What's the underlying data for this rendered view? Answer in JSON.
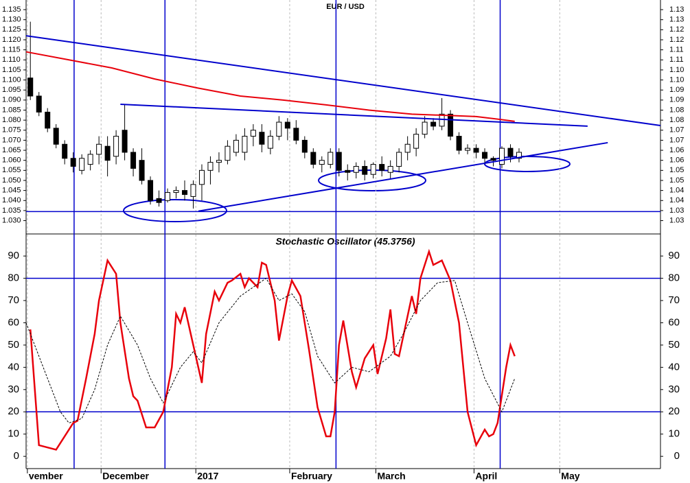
{
  "chart_data": [
    {
      "type": "candlestick",
      "title": "EUR / USD",
      "xlim": [
        0,
        148
      ],
      "ylim": [
        1.0237,
        1.1398
      ],
      "x": [
        1,
        3,
        5,
        7,
        9,
        11,
        13,
        15,
        17,
        19,
        21,
        23,
        25,
        27,
        29,
        31,
        33,
        35,
        37,
        39,
        41,
        43,
        45,
        47,
        49,
        51,
        53,
        55,
        57,
        59,
        61,
        63,
        65,
        67,
        69,
        71,
        73,
        75,
        77,
        79,
        81,
        83,
        85,
        87,
        89,
        91,
        93,
        95,
        97,
        99,
        101,
        103,
        105,
        107,
        109,
        111,
        113,
        115
      ],
      "open": [
        1.101,
        1.092,
        1.084,
        1.076,
        1.068,
        1.061,
        1.055,
        1.058,
        1.063,
        1.067,
        1.062,
        1.075,
        1.064,
        1.06,
        1.05,
        1.041,
        1.04,
        1.044,
        1.045,
        1.042,
        1.048,
        1.055,
        1.059,
        1.06,
        1.064,
        1.064,
        1.072,
        1.074,
        1.066,
        1.072,
        1.079,
        1.076,
        1.07,
        1.064,
        1.058,
        1.058,
        1.064,
        1.055,
        1.054,
        1.057,
        1.053,
        1.058,
        1.054,
        1.057,
        1.064,
        1.066,
        1.073,
        1.079,
        1.077,
        1.083,
        1.072,
        1.065,
        1.066,
        1.064,
        1.061,
        1.058,
        1.066,
        1.061
      ],
      "high": [
        1.129,
        1.094,
        1.086,
        1.078,
        1.07,
        1.064,
        1.063,
        1.065,
        1.072,
        1.072,
        1.075,
        1.088,
        1.066,
        1.066,
        1.052,
        1.045,
        1.046,
        1.047,
        1.05,
        1.05,
        1.058,
        1.062,
        1.064,
        1.07,
        1.073,
        1.076,
        1.078,
        1.078,
        1.075,
        1.082,
        1.081,
        1.08,
        1.072,
        1.066,
        1.062,
        1.066,
        1.066,
        1.058,
        1.059,
        1.06,
        1.059,
        1.062,
        1.06,
        1.066,
        1.072,
        1.076,
        1.082,
        1.081,
        1.091,
        1.085,
        1.074,
        1.068,
        1.068,
        1.066,
        1.062,
        1.067,
        1.068,
        1.066
      ],
      "low": [
        1.09,
        1.082,
        1.074,
        1.066,
        1.058,
        1.054,
        1.053,
        1.055,
        1.058,
        1.052,
        1.058,
        1.06,
        1.052,
        1.048,
        1.038,
        1.037,
        1.039,
        1.041,
        1.04,
        1.036,
        1.04,
        1.048,
        1.054,
        1.058,
        1.062,
        1.06,
        1.067,
        1.064,
        1.063,
        1.07,
        1.07,
        1.068,
        1.061,
        1.056,
        1.054,
        1.056,
        1.052,
        1.05,
        1.051,
        1.05,
        1.051,
        1.052,
        1.051,
        1.054,
        1.06,
        1.062,
        1.071,
        1.075,
        1.075,
        1.07,
        1.063,
        1.063,
        1.061,
        1.058,
        1.057,
        1.056,
        1.059,
        1.059
      ],
      "close": [
        1.092,
        1.084,
        1.076,
        1.068,
        1.061,
        1.057,
        1.061,
        1.063,
        1.068,
        1.06,
        1.072,
        1.064,
        1.056,
        1.05,
        1.04,
        1.039,
        1.044,
        1.045,
        1.043,
        1.048,
        1.055,
        1.059,
        1.06,
        1.067,
        1.07,
        1.072,
        1.075,
        1.068,
        1.072,
        1.079,
        1.076,
        1.07,
        1.064,
        1.058,
        1.06,
        1.064,
        1.055,
        1.054,
        1.057,
        1.053,
        1.058,
        1.055,
        1.057,
        1.064,
        1.068,
        1.073,
        1.079,
        1.077,
        1.083,
        1.072,
        1.065,
        1.066,
        1.064,
        1.061,
        1.06,
        1.066,
        1.062,
        1.064
      ],
      "up_color": "#ffffff",
      "down_color": "#000000",
      "series": [
        {
          "color": "#e8000b",
          "x": [
            0,
            10,
            20,
            30,
            40,
            50,
            60,
            70,
            80,
            90,
            100,
            105,
            110,
            114
          ],
          "values": [
            1.114,
            1.11,
            1.106,
            1.1005,
            1.096,
            1.092,
            1.09,
            1.0876,
            1.085,
            1.083,
            1.0822,
            1.0818,
            1.0805,
            1.0794
          ]
        }
      ],
      "trendlines": [
        {
          "x": [
            0,
            148
          ],
          "values": [
            1.122,
            1.0773
          ]
        },
        {
          "x": [
            22,
            131
          ],
          "values": [
            1.0879,
            1.077
          ]
        },
        {
          "x": [
            40.2,
            135.7
          ],
          "values": [
            1.0347,
            1.0688
          ]
        }
      ],
      "line_color": "#0000cc",
      "hlines": [
        1.0345
      ],
      "vlines": [
        11.2,
        32.4,
        72.3,
        110.6
      ],
      "yticks": [
        1.135,
        {
          "value": 1.13,
          "label": "1.130"
        },
        1.125,
        {
          "value": 1.12,
          "label": "1.120"
        },
        1.115,
        {
          "value": 1.11,
          "label": "1.110"
        },
        1.105,
        {
          "value": 1.1,
          "label": "1.100"
        },
        1.095,
        {
          "value": 1.09,
          "label": "1.090"
        },
        1.085,
        {
          "value": 1.08,
          "label": "1.080"
        },
        1.075,
        {
          "value": 1.07,
          "label": "1.070"
        },
        1.065,
        {
          "value": 1.06,
          "label": "1.060"
        },
        1.055,
        {
          "value": 1.05,
          "label": "1.050"
        },
        1.045,
        {
          "value": 1.04,
          "label": "1.040"
        },
        1.035,
        {
          "value": 1.03,
          "label": "1.030"
        }
      ],
      "y2ticks": [
        {
          "value": 1.135,
          "label": "1.13"
        },
        1.13,
        {
          "value": 1.125,
          "label": "1.12"
        },
        1.12,
        {
          "value": 1.115,
          "label": "1.11"
        },
        1.11,
        {
          "value": 1.105,
          "label": "1.10"
        },
        {
          "value": 1.1,
          "label": "1.10"
        },
        {
          "value": 1.095,
          "label": "1.09"
        },
        1.09,
        {
          "value": 1.085,
          "label": "1.08"
        },
        1.08,
        {
          "value": 1.075,
          "label": "1.07"
        },
        1.07,
        {
          "value": 1.065,
          "label": "1.06"
        },
        1.06,
        {
          "value": 1.055,
          "label": "1.05"
        },
        1.05,
        {
          "value": 1.045,
          "label": "1.04"
        },
        1.04,
        {
          "value": 1.035,
          "label": "1.03"
        },
        1.03
      ]
    },
    {
      "type": "line",
      "title": "Stochastic Oscillator (45.3756)",
      "xlim": [
        0,
        148
      ],
      "ylim": [
        -5.5,
        99.6
      ],
      "series": [
        {
          "color": "#e8000b",
          "x": [
            1,
            3,
            7,
            11,
            12,
            14,
            16,
            17,
            19,
            21,
            22,
            24,
            25,
            26,
            28,
            30,
            32,
            34,
            35,
            36,
            37,
            39,
            41,
            42,
            44,
            45,
            47,
            48,
            50,
            51,
            52,
            54,
            55,
            56,
            58,
            59,
            61,
            62,
            64,
            66,
            68,
            70,
            71,
            72,
            73,
            74,
            76,
            77,
            79,
            81,
            82,
            84,
            85,
            86,
            87,
            90,
            91,
            92,
            94,
            95,
            97,
            99,
            101,
            103,
            105,
            107,
            108,
            109,
            110,
            112,
            113,
            114
          ],
          "values": [
            57,
            5,
            3,
            15,
            16,
            35,
            55,
            70,
            88,
            82,
            60,
            35,
            27,
            25,
            13,
            13,
            20,
            40,
            64,
            60,
            67,
            50,
            33,
            55,
            74,
            70,
            78,
            79,
            82,
            76,
            80,
            76,
            87,
            86,
            70,
            52,
            72,
            79,
            72,
            48,
            22,
            9,
            9,
            20,
            50,
            61,
            38,
            31,
            44,
            50,
            37,
            53,
            66,
            46,
            45,
            72,
            64,
            80,
            92,
            86,
            88,
            79,
            60,
            20,
            5,
            12,
            9,
            10,
            15,
            40,
            50,
            45
          ]
        },
        {
          "color": "#000000",
          "dashed": true,
          "x": [
            0,
            4,
            8,
            10,
            13,
            16,
            19,
            22,
            26,
            29,
            32,
            36,
            39,
            41,
            45,
            50,
            56,
            59,
            62,
            65,
            68,
            72,
            76,
            80,
            85,
            88,
            92,
            96,
            100,
            103,
            107,
            111,
            114
          ],
          "values": [
            60,
            40,
            20,
            15,
            17,
            30,
            50,
            63,
            50,
            35,
            24,
            40,
            47,
            42,
            60,
            72,
            80,
            70,
            73,
            65,
            45,
            33,
            40,
            38,
            45,
            55,
            70,
            78,
            79,
            60,
            35,
            20,
            35
          ]
        }
      ],
      "line_color": "#0000cc",
      "hlines": [
        20,
        80
      ],
      "yticks": [
        0,
        10,
        20,
        30,
        40,
        50,
        60,
        70,
        80,
        90
      ],
      "xticks": [
        {
          "value": 0.3,
          "label": "vember"
        },
        {
          "value": 17.5,
          "label": "December"
        },
        {
          "value": 39.6,
          "label": "2017"
        },
        {
          "value": 61.5,
          "label": "February"
        },
        {
          "value": 81.6,
          "label": "March"
        },
        {
          "value": 104.5,
          "label": "April"
        },
        {
          "value": 124.5,
          "label": "May"
        }
      ]
    }
  ]
}
